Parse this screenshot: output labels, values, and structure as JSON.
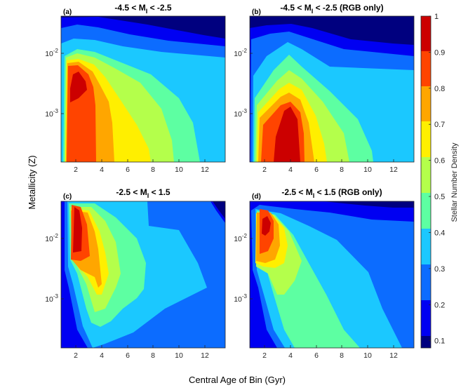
{
  "chart_data": {
    "type": "contour",
    "xlabel": "Central Age of Bin (Gyr)",
    "ylabel": "Metallicity (Z)",
    "colorbar": {
      "label": "Stellar Number Density",
      "ticks": [
        0.1,
        0.2,
        0.3,
        0.4,
        0.5,
        0.6,
        0.7,
        0.8,
        0.9,
        1
      ],
      "tick_labels": [
        "0.1",
        "0.2",
        "0.3",
        "0.4",
        "0.5",
        "0.6",
        "0.7",
        "0.8",
        "0.9",
        "1"
      ],
      "range": [
        0.08,
        1.0
      ],
      "colormap": "jet"
    },
    "x_ticks": [
      2,
      4,
      6,
      8,
      10,
      12
    ],
    "x_tick_labels": [
      "2",
      "4",
      "6",
      "8",
      "10",
      "12"
    ],
    "xlim": [
      0.6,
      13.3
    ],
    "y_scale": "log",
    "y_ticks": [
      0.001,
      0.01
    ],
    "y_tick_labels": [
      {
        "base": "10",
        "exp": "-3"
      },
      {
        "base": "10",
        "exp": "-2"
      }
    ],
    "ylim": [
      0.00015,
      0.045
    ],
    "panels": [
      {
        "letter": "(a)",
        "title": {
          "pre": "-4.5 < M",
          "sub": "I",
          "post": " < -2.5"
        },
        "peak": {
          "age": 1.7,
          "Z": 0.005
        },
        "density_levels": [
          0.1,
          0.2,
          0.3,
          0.4,
          0.5,
          0.6,
          0.7,
          0.8,
          0.9
        ]
      },
      {
        "letter": "(b)",
        "title": {
          "pre": "-4.5 < M",
          "sub": "I",
          "post": " < -2.5 (RGB only)"
        },
        "peak": {
          "age": 3.5,
          "Z": 0.0006
        },
        "density_levels": [
          0.1,
          0.2,
          0.3,
          0.4,
          0.5,
          0.6,
          0.7,
          0.8,
          0.9
        ]
      },
      {
        "letter": "(c)",
        "title": {
          "pre": "-2.5 < M",
          "sub": "I",
          "post": " < 1.5"
        },
        "peak": {
          "age": 1.8,
          "Z": 0.015
        },
        "density_levels": [
          0.1,
          0.2,
          0.3,
          0.4,
          0.5,
          0.6,
          0.7,
          0.8,
          0.9
        ]
      },
      {
        "letter": "(d)",
        "title": {
          "pre": "-2.5 < M",
          "sub": "I",
          "post": " < 1.5 (RGB only)"
        },
        "peak": {
          "age": 1.8,
          "Z": 0.017
        },
        "density_levels": [
          0.1,
          0.2,
          0.3,
          0.4,
          0.5,
          0.6,
          0.7,
          0.8,
          0.9
        ]
      }
    ]
  }
}
